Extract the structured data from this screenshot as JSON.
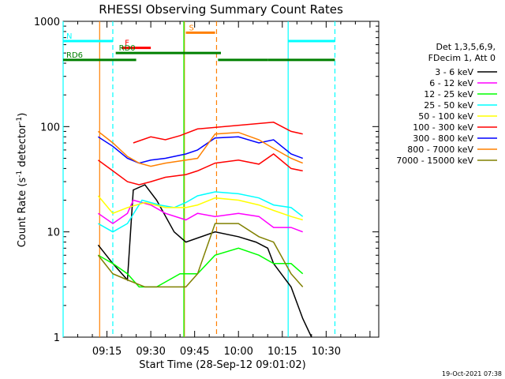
{
  "chart_data": {
    "type": "line",
    "title": "RHESSI Observing Summary Count Rates",
    "xlabel": "Start Time (28-Sep-12 09:01:02)",
    "ylabel": "Count Rate (s",
    "ylabel_sup": "-1",
    "ylabel_tail": " detector",
    "ylabel_close": ")",
    "yscale": "log",
    "ylim": [
      1,
      1000
    ],
    "xlim_min": [
      0,
      108
    ],
    "y_ticks": [
      {
        "value": 1,
        "label": "1"
      },
      {
        "value": 10,
        "label": "10"
      },
      {
        "value": 100,
        "label": "100"
      },
      {
        "value": 1000,
        "label": "1000"
      }
    ],
    "x_ticks": [
      {
        "min": 15,
        "label": "09:15"
      },
      {
        "min": 30,
        "label": "09:30"
      },
      {
        "min": 45,
        "label": "09:45"
      },
      {
        "min": 60,
        "label": "10:00"
      },
      {
        "min": 75,
        "label": "10:15"
      },
      {
        "min": 90,
        "label": "10:30"
      }
    ],
    "legend_header": [
      "Det 1,3,5,6,9,",
      "FDecim 1, Att 0"
    ],
    "series": [
      {
        "name": "3 - 6 keV",
        "color": "#000000",
        "values": [
          [
            12,
            7.5
          ],
          [
            17,
            5
          ],
          [
            22,
            3.5
          ],
          [
            24,
            25
          ],
          [
            28,
            28
          ],
          [
            32,
            20
          ],
          [
            38,
            10
          ],
          [
            42,
            8
          ],
          [
            52,
            10
          ],
          [
            60,
            9
          ],
          [
            66,
            8
          ],
          [
            70,
            7
          ],
          [
            72,
            5
          ],
          [
            78,
            3
          ],
          [
            82,
            1.5
          ],
          [
            85,
            1
          ]
        ]
      },
      {
        "name": "6 - 12 keV",
        "color": "#ff00ff",
        "values": [
          [
            12,
            15
          ],
          [
            17,
            12
          ],
          [
            22,
            15
          ],
          [
            24,
            20
          ],
          [
            30,
            18
          ],
          [
            35,
            15
          ],
          [
            42,
            13
          ],
          [
            46,
            15
          ],
          [
            52,
            14
          ],
          [
            60,
            15
          ],
          [
            67,
            14
          ],
          [
            72,
            11
          ],
          [
            78,
            11
          ],
          [
            82,
            10
          ]
        ]
      },
      {
        "name": "12 - 25 keV",
        "color": "#00ff00",
        "values": [
          [
            12,
            6
          ],
          [
            17,
            5
          ],
          [
            22,
            4
          ],
          [
            26,
            3
          ],
          [
            32,
            3
          ],
          [
            40,
            4
          ],
          [
            46,
            4
          ],
          [
            52,
            6
          ],
          [
            60,
            7
          ],
          [
            67,
            6
          ],
          [
            72,
            5
          ],
          [
            78,
            5
          ],
          [
            82,
            4
          ]
        ]
      },
      {
        "name": "25 - 50 keV",
        "color": "#00ffff",
        "values": [
          [
            12,
            12
          ],
          [
            17,
            10
          ],
          [
            22,
            12
          ],
          [
            27,
            20
          ],
          [
            33,
            18
          ],
          [
            38,
            17
          ],
          [
            42,
            19
          ],
          [
            46,
            22
          ],
          [
            52,
            24
          ],
          [
            60,
            23
          ],
          [
            67,
            21
          ],
          [
            72,
            18
          ],
          [
            78,
            17
          ],
          [
            82,
            14
          ]
        ]
      },
      {
        "name": "50 - 100 keV",
        "color": "#ffff00",
        "values": [
          [
            12,
            22
          ],
          [
            17,
            15
          ],
          [
            22,
            17
          ],
          [
            28,
            19
          ],
          [
            35,
            17
          ],
          [
            42,
            17
          ],
          [
            46,
            18
          ],
          [
            52,
            21
          ],
          [
            60,
            20
          ],
          [
            67,
            18
          ],
          [
            72,
            16
          ],
          [
            78,
            14
          ],
          [
            82,
            13
          ]
        ]
      },
      {
        "name": "100 - 300 keV",
        "color": "#ff0000",
        "values": [
          [
            12,
            48
          ],
          [
            17,
            38
          ],
          [
            22,
            30
          ],
          [
            26,
            28
          ],
          [
            30,
            30
          ],
          [
            35,
            33
          ],
          [
            42,
            35
          ],
          [
            46,
            38
          ],
          [
            52,
            45
          ],
          [
            60,
            48
          ],
          [
            67,
            44
          ],
          [
            72,
            55
          ],
          [
            78,
            40
          ],
          [
            82,
            38
          ]
        ]
      },
      {
        "name": "300 - 800 keV",
        "color": "#0000ff",
        "values": [
          [
            12,
            80
          ],
          [
            17,
            65
          ],
          [
            22,
            50
          ],
          [
            26,
            45
          ],
          [
            30,
            48
          ],
          [
            35,
            50
          ],
          [
            42,
            55
          ],
          [
            46,
            60
          ],
          [
            52,
            78
          ],
          [
            60,
            80
          ],
          [
            67,
            70
          ],
          [
            72,
            75
          ],
          [
            78,
            55
          ],
          [
            82,
            50
          ]
        ]
      },
      {
        "name": "800 - 7000 keV",
        "color": "#ff8000",
        "values": [
          [
            12,
            90
          ],
          [
            17,
            70
          ],
          [
            22,
            52
          ],
          [
            26,
            45
          ],
          [
            30,
            42
          ],
          [
            35,
            45
          ],
          [
            42,
            48
          ],
          [
            46,
            50
          ],
          [
            52,
            85
          ],
          [
            60,
            88
          ],
          [
            67,
            75
          ],
          [
            72,
            62
          ],
          [
            78,
            50
          ],
          [
            82,
            45
          ]
        ]
      },
      {
        "name": "7000 - 15000 keV",
        "color": "#808000",
        "values": [
          [
            12,
            6
          ],
          [
            17,
            4
          ],
          [
            22,
            3.5
          ],
          [
            28,
            3
          ],
          [
            35,
            3
          ],
          [
            42,
            3
          ],
          [
            46,
            4
          ],
          [
            52,
            12
          ],
          [
            60,
            12
          ],
          [
            67,
            9
          ],
          [
            72,
            8
          ],
          [
            78,
            4
          ],
          [
            82,
            3
          ]
        ]
      }
    ],
    "extra_series": [
      {
        "name": "upper red",
        "color": "#ff0000",
        "values": [
          [
            24,
            70
          ],
          [
            30,
            80
          ],
          [
            35,
            75
          ],
          [
            40,
            82
          ],
          [
            46,
            95
          ],
          [
            72,
            110
          ],
          [
            78,
            90
          ],
          [
            82,
            85
          ]
        ]
      }
    ],
    "flags": [
      {
        "label": "N",
        "color": "#00ffff",
        "y": 650,
        "spans": [
          [
            0,
            17
          ],
          [
            77,
            93
          ]
        ]
      },
      {
        "label": "F",
        "color": "#ff0000",
        "y": 560,
        "spans": [
          [
            20,
            30
          ]
        ]
      },
      {
        "label": "S",
        "color": "#ff8000",
        "y": 780,
        "spans": [
          [
            42,
            52
          ]
        ]
      },
      {
        "label": "RD0",
        "color": "#008000",
        "y": 500,
        "spans": [
          [
            18,
            42
          ],
          [
            42,
            54
          ]
        ]
      },
      {
        "label": "RD6",
        "color": "#008000",
        "y": 430,
        "spans": [
          [
            0,
            25
          ],
          [
            53,
            70
          ],
          [
            70,
            93
          ]
        ]
      }
    ],
    "vlines": [
      {
        "min": 0,
        "color": "#00ffff",
        "dash": false
      },
      {
        "min": 17,
        "color": "#00ffff",
        "dash": true
      },
      {
        "min": 12.5,
        "color": "#ff8000",
        "dash": false
      },
      {
        "min": 41.5,
        "color": "#ff8000",
        "dash": false
      },
      {
        "min": 41.3,
        "color": "#00ff00",
        "dash": false
      },
      {
        "min": 52.5,
        "color": "#ff8000",
        "dash": true
      },
      {
        "min": 77,
        "color": "#00ffff",
        "dash": false
      },
      {
        "min": 93,
        "color": "#00ffff",
        "dash": true
      }
    ],
    "footer": "19-Oct-2021 07:38"
  }
}
